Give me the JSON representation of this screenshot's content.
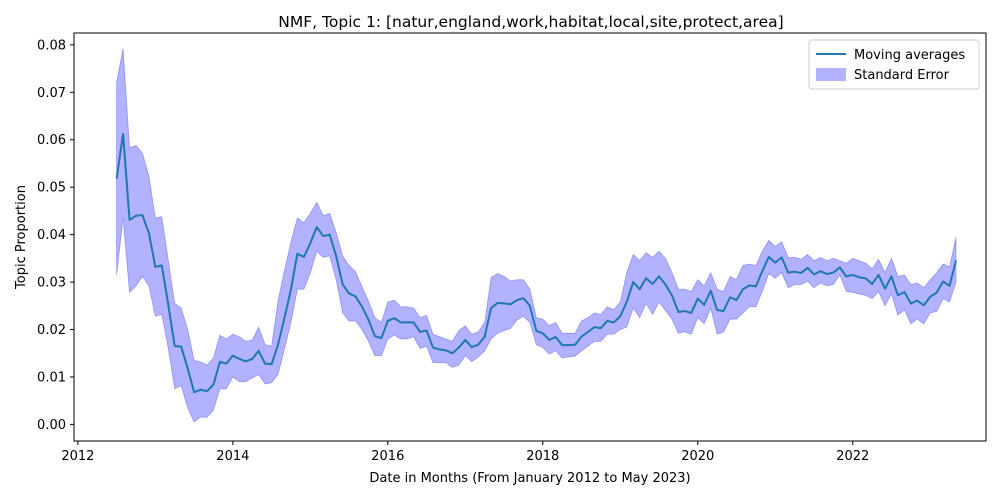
{
  "chart_data": {
    "type": "line",
    "title": "NMF, Topic 1: [natur,england,work,habitat,local,site,protect,area]",
    "xlabel": "Date in Months (From January 2012 to May 2023)",
    "ylabel": "Topic Proportion",
    "xlim": [
      2011.95,
      2023.72
    ],
    "ylim": [
      -0.0035,
      0.0825
    ],
    "xticks": [
      2012,
      2014,
      2016,
      2018,
      2020,
      2022
    ],
    "yticks": [
      0.0,
      0.01,
      0.02,
      0.03,
      0.04,
      0.05,
      0.06,
      0.07,
      0.08
    ],
    "ytick_labels": [
      "0.00",
      "0.01",
      "0.02",
      "0.03",
      "0.04",
      "0.05",
      "0.06",
      "0.07",
      "0.08"
    ],
    "grid": false,
    "legend": {
      "position": "top-right"
    },
    "colors": {
      "line": "#1f77b4",
      "band": "#0000ff",
      "band_opacity": 0.3
    },
    "series": [
      {
        "name": "Moving averages",
        "kind": "line",
        "x": [
          2012.5,
          2012.583,
          2012.667,
          2012.75,
          2012.833,
          2012.917,
          2013.0,
          2013.083,
          2013.167,
          2013.25,
          2013.333,
          2013.417,
          2013.5,
          2013.583,
          2013.667,
          2013.75,
          2013.833,
          2013.917,
          2014.0,
          2014.083,
          2014.167,
          2014.25,
          2014.333,
          2014.417,
          2014.5,
          2014.583,
          2014.667,
          2014.75,
          2014.833,
          2014.917,
          2015.0,
          2015.083,
          2015.167,
          2015.25,
          2015.333,
          2015.417,
          2015.5,
          2015.583,
          2015.667,
          2015.75,
          2015.833,
          2015.917,
          2016.0,
          2016.083,
          2016.167,
          2016.25,
          2016.333,
          2016.417,
          2016.5,
          2016.583,
          2016.667,
          2016.75,
          2016.833,
          2016.917,
          2017.0,
          2017.083,
          2017.167,
          2017.25,
          2017.333,
          2017.417,
          2017.5,
          2017.583,
          2017.667,
          2017.75,
          2017.833,
          2017.917,
          2018.0,
          2018.083,
          2018.167,
          2018.25,
          2018.333,
          2018.417,
          2018.5,
          2018.583,
          2018.667,
          2018.75,
          2018.833,
          2018.917,
          2019.0,
          2019.083,
          2019.167,
          2019.25,
          2019.333,
          2019.417,
          2019.5,
          2019.583,
          2019.667,
          2019.75,
          2019.833,
          2019.917,
          2020.0,
          2020.083,
          2020.167,
          2020.25,
          2020.333,
          2020.417,
          2020.5,
          2020.583,
          2020.667,
          2020.75,
          2020.833,
          2020.917,
          2021.0,
          2021.083,
          2021.167,
          2021.25,
          2021.333,
          2021.417,
          2021.5,
          2021.583,
          2021.667,
          2021.75,
          2021.833,
          2021.917,
          2022.0,
          2022.083,
          2022.167,
          2022.25,
          2022.333,
          2022.417,
          2022.5,
          2022.583,
          2022.667,
          2022.75,
          2022.833,
          2022.917,
          2023.0,
          2023.083,
          2023.167,
          2023.25,
          2023.333
        ],
        "values": [
          0.0518,
          0.0612,
          0.0431,
          0.044,
          0.0441,
          0.0403,
          0.0332,
          0.0335,
          0.0252,
          0.0165,
          0.0164,
          0.0118,
          0.0068,
          0.0073,
          0.007,
          0.0084,
          0.0132,
          0.0128,
          0.0145,
          0.0138,
          0.0133,
          0.0138,
          0.0155,
          0.0128,
          0.0127,
          0.0168,
          0.0225,
          0.0285,
          0.036,
          0.0353,
          0.0382,
          0.0416,
          0.0397,
          0.04,
          0.0355,
          0.0295,
          0.0276,
          0.027,
          0.0248,
          0.0221,
          0.0186,
          0.0182,
          0.0218,
          0.0224,
          0.0215,
          0.0215,
          0.0215,
          0.0195,
          0.0198,
          0.0162,
          0.0158,
          0.0156,
          0.015,
          0.0162,
          0.0178,
          0.0163,
          0.0168,
          0.0185,
          0.0245,
          0.0256,
          0.0255,
          0.0253,
          0.0262,
          0.0266,
          0.025,
          0.0197,
          0.0192,
          0.0178,
          0.0184,
          0.0167,
          0.0167,
          0.0168,
          0.0185,
          0.0195,
          0.0205,
          0.0203,
          0.0218,
          0.0215,
          0.0228,
          0.0258,
          0.03,
          0.0285,
          0.0308,
          0.0296,
          0.0312,
          0.0295,
          0.0272,
          0.0237,
          0.0239,
          0.0235,
          0.0265,
          0.0252,
          0.0282,
          0.0241,
          0.0239,
          0.0268,
          0.0262,
          0.0285,
          0.0293,
          0.0291,
          0.0323,
          0.0353,
          0.0341,
          0.0352,
          0.032,
          0.0322,
          0.0319,
          0.033,
          0.0316,
          0.0323,
          0.0317,
          0.032,
          0.0331,
          0.0312,
          0.0315,
          0.031,
          0.0308,
          0.0296,
          0.0315,
          0.0286,
          0.0312,
          0.0272,
          0.0279,
          0.0255,
          0.0261,
          0.0251,
          0.0269,
          0.0278,
          0.0301,
          0.0292,
          0.0346
        ]
      },
      {
        "name": "Standard Error",
        "kind": "band",
        "upper": [
          0.0722,
          0.0792,
          0.0583,
          0.0588,
          0.0572,
          0.0523,
          0.0435,
          0.0438,
          0.0345,
          0.0255,
          0.0245,
          0.02,
          0.0135,
          0.0132,
          0.0125,
          0.014,
          0.0188,
          0.018,
          0.019,
          0.0185,
          0.0175,
          0.0178,
          0.0205,
          0.0168,
          0.0165,
          0.026,
          0.0325,
          0.0385,
          0.0435,
          0.0425,
          0.0445,
          0.0468,
          0.044,
          0.0445,
          0.0405,
          0.0355,
          0.0335,
          0.0322,
          0.029,
          0.026,
          0.0225,
          0.0215,
          0.0258,
          0.0262,
          0.0248,
          0.0248,
          0.0245,
          0.0225,
          0.023,
          0.019,
          0.0185,
          0.018,
          0.0175,
          0.0198,
          0.0208,
          0.019,
          0.0195,
          0.0215,
          0.031,
          0.0318,
          0.0312,
          0.0302,
          0.0305,
          0.0305,
          0.0285,
          0.0225,
          0.0222,
          0.0208,
          0.0215,
          0.0192,
          0.0192,
          0.0192,
          0.0218,
          0.0225,
          0.0235,
          0.0232,
          0.0248,
          0.0242,
          0.0258,
          0.032,
          0.0358,
          0.0345,
          0.0362,
          0.0352,
          0.0365,
          0.035,
          0.032,
          0.0285,
          0.0285,
          0.028,
          0.0305,
          0.0292,
          0.032,
          0.0285,
          0.028,
          0.0312,
          0.0305,
          0.0335,
          0.0338,
          0.0335,
          0.0365,
          0.0388,
          0.0375,
          0.0385,
          0.0352,
          0.0352,
          0.0348,
          0.0358,
          0.0345,
          0.0352,
          0.0345,
          0.035,
          0.0345,
          0.034,
          0.035,
          0.0345,
          0.034,
          0.0328,
          0.0348,
          0.032,
          0.035,
          0.0312,
          0.0315,
          0.0295,
          0.0298,
          0.0288,
          0.0305,
          0.032,
          0.0338,
          0.0332,
          0.0395
        ],
        "lower": [
          0.0315,
          0.0435,
          0.0278,
          0.0292,
          0.0312,
          0.0292,
          0.0228,
          0.0232,
          0.016,
          0.0075,
          0.0082,
          0.0035,
          0.0005,
          0.0015,
          0.0015,
          0.003,
          0.0075,
          0.0075,
          0.01,
          0.009,
          0.009,
          0.0098,
          0.0105,
          0.0085,
          0.0088,
          0.0105,
          0.016,
          0.0215,
          0.0285,
          0.0285,
          0.032,
          0.0365,
          0.0352,
          0.0355,
          0.0305,
          0.0235,
          0.0218,
          0.0218,
          0.02,
          0.0175,
          0.0145,
          0.0145,
          0.018,
          0.0188,
          0.018,
          0.018,
          0.0185,
          0.016,
          0.0165,
          0.013,
          0.013,
          0.013,
          0.012,
          0.0125,
          0.0145,
          0.0132,
          0.0142,
          0.0155,
          0.018,
          0.0192,
          0.0198,
          0.0202,
          0.022,
          0.0228,
          0.0215,
          0.0168,
          0.0162,
          0.0148,
          0.0155,
          0.014,
          0.0142,
          0.0144,
          0.0155,
          0.0165,
          0.0175,
          0.0175,
          0.019,
          0.019,
          0.02,
          0.0205,
          0.0245,
          0.0225,
          0.0255,
          0.0232,
          0.0258,
          0.024,
          0.0222,
          0.0192,
          0.0195,
          0.019,
          0.0225,
          0.0212,
          0.0245,
          0.019,
          0.0195,
          0.0222,
          0.0222,
          0.0235,
          0.0248,
          0.0248,
          0.028,
          0.0318,
          0.0308,
          0.032,
          0.0288,
          0.0295,
          0.0295,
          0.0302,
          0.0288,
          0.0298,
          0.0292,
          0.0295,
          0.0315,
          0.028,
          0.0278,
          0.0275,
          0.0272,
          0.0265,
          0.028,
          0.025,
          0.0275,
          0.023,
          0.0242,
          0.0212,
          0.0222,
          0.0212,
          0.0235,
          0.0238,
          0.0265,
          0.0258,
          0.03
        ]
      }
    ]
  }
}
